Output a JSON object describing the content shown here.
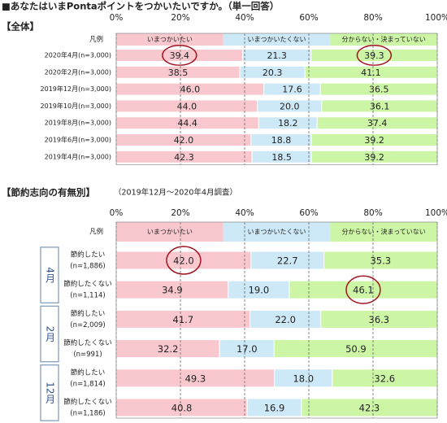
{
  "chart_data": [
    {
      "type": "stacked-bar-horizontal",
      "title": "■あなたはいまPontaポイントをつかいたいですか。（単一回答）",
      "subtitle": "【全体】",
      "legend_title": "凡例",
      "categories": [
        "2020年4月(n=3,000)",
        "2020年2月(n=3,000)",
        "2019年12月(n=3,000)",
        "2019年10月(n=3,000)",
        "2019年8月(n=3,000)",
        "2019年6月(n=3,000)",
        "2019年4月(n=3,000)"
      ],
      "series": [
        {
          "name": "いまつかいたい",
          "color": "#f9c8cf",
          "values": [
            39.4,
            38.5,
            46.0,
            44.0,
            44.4,
            42.0,
            42.3
          ],
          "value_labels": [
            "39.4",
            "38.5",
            "46.0",
            "44.0",
            "44.4",
            "42.0",
            "42.3"
          ]
        },
        {
          "name": "いまつかいたくない",
          "color": "#cde8f6",
          "values": [
            21.3,
            20.3,
            17.6,
            20.0,
            18.2,
            18.8,
            18.5
          ],
          "value_labels": [
            "21.3",
            "20.3",
            "17.6",
            "20.0",
            "18.2",
            "18.8",
            "18.5"
          ]
        },
        {
          "name": "分からない・決まっていない",
          "color": "#cdf5a6",
          "values": [
            39.3,
            41.1,
            36.5,
            36.1,
            37.4,
            39.2,
            39.2
          ],
          "value_labels": [
            "39.3",
            "41.1",
            "36.5",
            "36.1",
            "37.4",
            "39.2",
            "39.2"
          ]
        }
      ],
      "circled": [
        [
          0,
          0
        ],
        [
          2,
          0
        ]
      ],
      "xlim": [
        0,
        100
      ],
      "xticks": [
        {
          "value": 0,
          "label": "0%"
        },
        {
          "value": 20,
          "label": "20%"
        },
        {
          "value": 40,
          "label": "40%"
        },
        {
          "value": 60,
          "label": "60%"
        },
        {
          "value": 80,
          "label": "80%"
        },
        {
          "value": 100,
          "label": "100%"
        }
      ],
      "grid": true
    },
    {
      "type": "stacked-bar-horizontal",
      "title": "【節約志向の有無別】",
      "subtitle": "（2019年12月～2020年4月調査）",
      "legend_title": "凡例",
      "groups": [
        "4月",
        "2月",
        "12月"
      ],
      "group_size": 2,
      "categories": [
        "節約したい",
        "節約したくない",
        "節約したい",
        "節約したくない",
        "節約したい",
        "節約したくない"
      ],
      "sample_sizes": [
        "(n=1,886)",
        "(n=1,114)",
        "(n=2,009)",
        "(n=991)",
        "(n=1,814)",
        "(n=1,186)"
      ],
      "series": [
        {
          "name": "いまつかいたい",
          "color": "#f9c8cf",
          "values": [
            42.0,
            34.9,
            41.7,
            32.2,
            49.3,
            40.8
          ],
          "value_labels": [
            "42.0",
            "34.9",
            "41.7",
            "32.2",
            "49.3",
            "40.8"
          ]
        },
        {
          "name": "いまつかいたくない",
          "color": "#cde8f6",
          "values": [
            22.7,
            19.0,
            22.0,
            17.0,
            18.0,
            16.9
          ],
          "value_labels": [
            "22.7",
            "19.0",
            "22.0",
            "17.0",
            "18.0",
            "16.9"
          ]
        },
        {
          "name": "分からない・決まっていない",
          "color": "#cdf5a6",
          "values": [
            35.3,
            46.1,
            36.3,
            50.9,
            32.6,
            42.3
          ],
          "value_labels": [
            "35.3",
            "46.1",
            "36.3",
            "50.9",
            "32.6",
            "42.3"
          ]
        }
      ],
      "circled": [
        [
          0,
          0
        ],
        [
          2,
          1
        ]
      ],
      "xlim": [
        0,
        100
      ],
      "xticks": [
        {
          "value": 0,
          "label": "0%"
        },
        {
          "value": 20,
          "label": "20%"
        },
        {
          "value": 40,
          "label": "40%"
        },
        {
          "value": 60,
          "label": "60%"
        },
        {
          "value": 80,
          "label": "80%"
        },
        {
          "value": 100,
          "label": "100%"
        }
      ],
      "grid": true
    }
  ]
}
